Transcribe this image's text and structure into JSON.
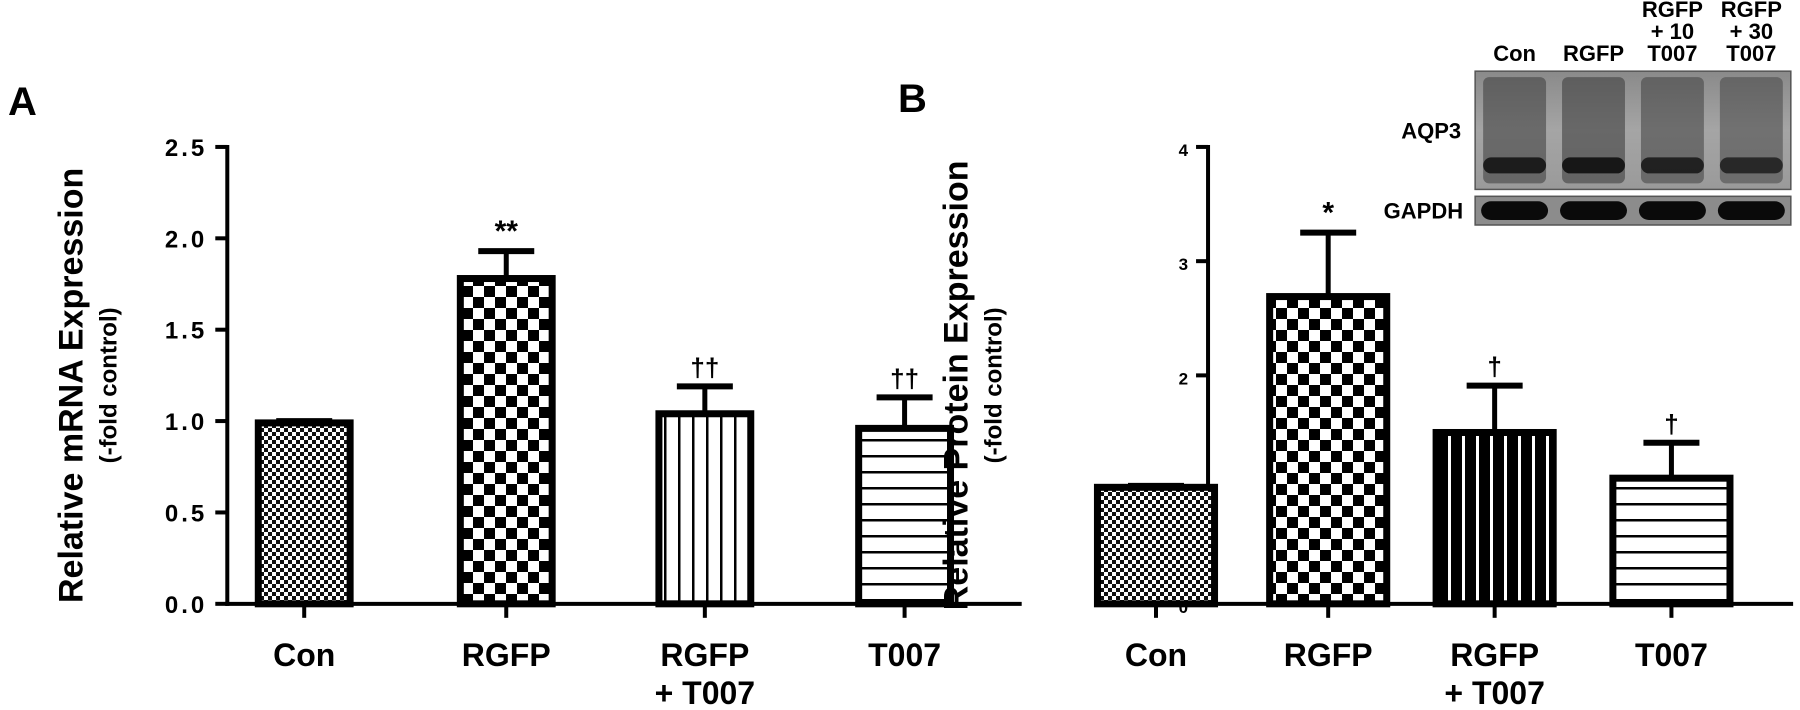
{
  "panels": [
    {
      "letter": "A"
    },
    {
      "letter": "B"
    }
  ],
  "chart_data": [
    {
      "type": "bar",
      "panel": "A",
      "title": "",
      "ylabel": "Relative mRNA Expression",
      "ylabel_sub": "(-fold control)",
      "xlabel": "",
      "ylim": [
        0,
        2.5
      ],
      "yticks": [
        "0.0",
        "0.5",
        "1.0",
        "1.5",
        "2.0",
        "2.5"
      ],
      "categories": [
        "Con",
        "RGFP",
        "RGFP + T007",
        "T007"
      ],
      "category_lines": [
        [
          "Con"
        ],
        [
          "RGFP"
        ],
        [
          "RGFP",
          "+ T007"
        ],
        [
          "T007"
        ]
      ],
      "values": [
        0.99,
        1.78,
        1.04,
        0.96
      ],
      "error_upper": [
        1.0,
        1.93,
        1.19,
        1.13
      ],
      "annotations": [
        "",
        "**",
        "††",
        "††"
      ],
      "patterns": [
        "fine-check",
        "coarse-check",
        "vertical-lines",
        "horizontal-lines"
      ],
      "grid": false
    },
    {
      "type": "bar",
      "panel": "B",
      "title": "",
      "ylabel": "Relative Protein Expression",
      "ylabel_sub": "(-fold control)",
      "xlabel": "",
      "ylim": [
        0,
        4
      ],
      "yticks": [
        "0",
        "1",
        "2",
        "3",
        "4"
      ],
      "categories": [
        "Con",
        "RGFP",
        "RGFP + T007",
        "T007"
      ],
      "category_lines": [
        [
          "Con"
        ],
        [
          "RGFP"
        ],
        [
          "RGFP",
          "+ T007"
        ],
        [
          "T007"
        ]
      ],
      "values": [
        1.02,
        2.69,
        1.5,
        1.1
      ],
      "error_upper": [
        1.02,
        3.25,
        1.91,
        1.41
      ],
      "annotations": [
        "",
        "*",
        "†",
        "†"
      ],
      "patterns": [
        "fine-check",
        "coarse-check",
        "black-vertical-lines",
        "horizontal-lines"
      ],
      "grid": false
    }
  ],
  "blot": {
    "lane_labels": [
      [
        "Con"
      ],
      [
        "RGFP"
      ],
      [
        "RGFP",
        "+ 10",
        "T007"
      ],
      [
        "RGFP",
        "+ 30",
        "T007"
      ]
    ],
    "rows": [
      {
        "label": "AQP3",
        "band_intensity": [
          0.85,
          0.95,
          0.75,
          0.6
        ]
      },
      {
        "label": "GAPDH",
        "band_intensity": [
          1,
          1,
          1,
          1
        ]
      }
    ]
  }
}
